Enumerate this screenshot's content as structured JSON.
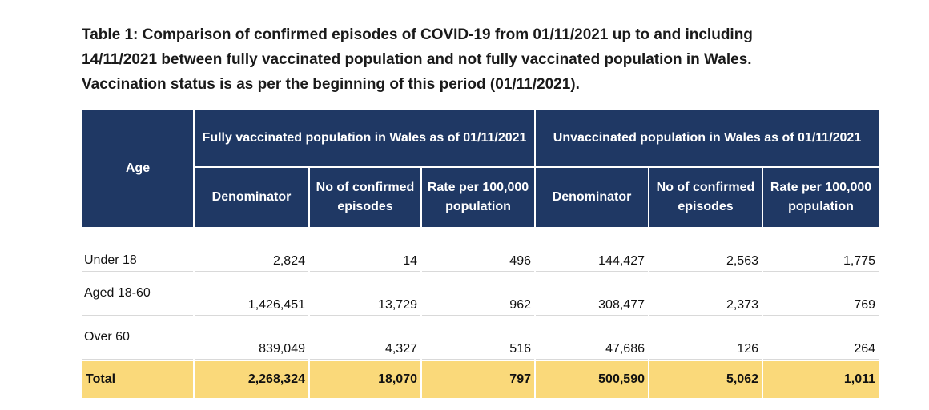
{
  "caption": {
    "line1": "Table 1: Comparison of confirmed episodes of COVID-19 from 01/11/2021 up to and including",
    "line2": "14/11/2021 between fully vaccinated population and not fully vaccinated population in Wales.",
    "line3": "Vaccination status is as per the beginning of this period (01/11/2021)."
  },
  "table": {
    "age_header": "Age",
    "groups": [
      {
        "title": "Fully vaccinated population in Wales as of 01/11/2021"
      },
      {
        "title": "Unvaccinated population in Wales as of 01/11/2021"
      }
    ],
    "subheaders": [
      "Denominator",
      "No of confirmed episodes",
      "Rate per 100,000 population"
    ],
    "rows": [
      {
        "age": "Under 18",
        "values": [
          "2,824",
          "14",
          "496",
          "144,427",
          "2,563",
          "1,775"
        ]
      },
      {
        "age": "Aged 18-60",
        "values": [
          "1,426,451",
          "13,729",
          "962",
          "308,477",
          "2,373",
          "769"
        ]
      },
      {
        "age": "Over 60",
        "values": [
          "839,049",
          "4,327",
          "516",
          "47,686",
          "126",
          "264"
        ]
      }
    ],
    "total": {
      "age": "Total",
      "values": [
        "2,268,324",
        "18,070",
        "797",
        "500,590",
        "5,062",
        "1,011"
      ]
    }
  },
  "colors": {
    "header_bg": "#1f3864",
    "total_bg": "#fad97a"
  }
}
